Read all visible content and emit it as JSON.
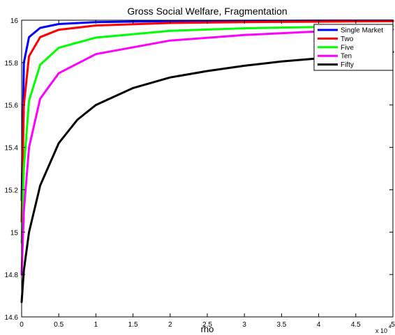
{
  "chart_data": {
    "type": "line",
    "title": "Gross Social Welfare, Fragmentation",
    "xlabel": "rho",
    "ylabel": "",
    "x_exponent_label": "x 10",
    "x_exponent_power": "4",
    "xlim": [
      0,
      50000
    ],
    "ylim": [
      14.6,
      16
    ],
    "x_ticks": [
      0,
      5000,
      10000,
      15000,
      20000,
      25000,
      30000,
      35000,
      40000,
      45000,
      50000
    ],
    "x_tick_labels": [
      "0",
      "0.5",
      "1",
      "1.5",
      "2",
      "2.5",
      "3",
      "3.5",
      "4",
      "4.5",
      "5"
    ],
    "y_ticks": [
      14.6,
      14.8,
      15,
      15.2,
      15.4,
      15.6,
      15.8,
      16
    ],
    "y_tick_labels": [
      "14.6",
      "14.8",
      "15",
      "15.2",
      "15.4",
      "15.6",
      "15.8",
      "16"
    ],
    "grid": false,
    "legend_position": "top-right",
    "series": [
      {
        "name": "Single Market",
        "color": "#0000ff",
        "x": [
          0,
          300,
          1000,
          2500,
          5000,
          10000,
          20000,
          30000,
          40000,
          50000
        ],
        "y": [
          15.15,
          15.8,
          15.92,
          15.964,
          15.982,
          15.991,
          15.996,
          15.997,
          15.998,
          15.998
        ]
      },
      {
        "name": "Two",
        "color": "#ff0000",
        "x": [
          0,
          300,
          1000,
          2500,
          5000,
          10000,
          20000,
          30000,
          40000,
          50000
        ],
        "y": [
          15.05,
          15.6,
          15.83,
          15.92,
          15.955,
          15.975,
          15.987,
          15.991,
          15.993,
          15.995
        ]
      },
      {
        "name": "Five",
        "color": "#00ff00",
        "x": [
          0,
          300,
          1000,
          2500,
          5000,
          10000,
          20000,
          30000,
          40000,
          50000
        ],
        "y": [
          14.95,
          15.3,
          15.62,
          15.79,
          15.87,
          15.918,
          15.95,
          15.962,
          15.968,
          15.972
        ]
      },
      {
        "name": "Ten",
        "color": "#ff00ff",
        "x": [
          0,
          300,
          1000,
          2500,
          5000,
          10000,
          20000,
          30000,
          40000,
          50000
        ],
        "y": [
          14.8,
          15.1,
          15.4,
          15.63,
          15.75,
          15.84,
          15.904,
          15.93,
          15.947,
          15.957
        ]
      },
      {
        "name": "Fifty",
        "color": "#000000",
        "x": [
          0,
          300,
          1000,
          2500,
          5000,
          7500,
          10000,
          15000,
          20000,
          25000,
          30000,
          35000,
          40000,
          45000,
          50000
        ],
        "y": [
          14.67,
          14.82,
          15.0,
          15.22,
          15.42,
          15.53,
          15.6,
          15.68,
          15.73,
          15.76,
          15.785,
          15.805,
          15.82,
          15.835,
          15.85
        ]
      }
    ]
  }
}
